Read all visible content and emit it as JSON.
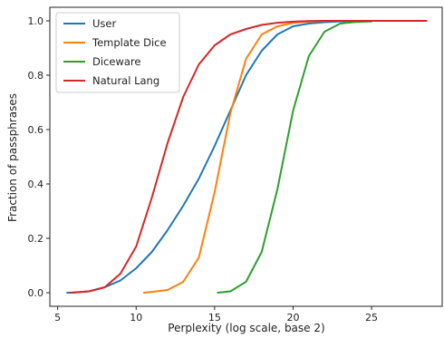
{
  "chart_data": {
    "type": "line",
    "title": "",
    "xlabel": "Perplexity (log scale, base 2)",
    "ylabel": "Fraction of passphrases",
    "xlim": [
      4.5,
      29.5
    ],
    "ylim": [
      -0.05,
      1.05
    ],
    "xticks": [
      5,
      10,
      15,
      20,
      25
    ],
    "yticks": [
      0.0,
      0.2,
      0.4,
      0.6,
      0.8,
      1.0
    ],
    "xtick_labels": [
      "5",
      "10",
      "15",
      "20",
      "25"
    ],
    "ytick_labels": [
      "0.0",
      "0.2",
      "0.4",
      "0.6",
      "0.8",
      "1.0"
    ],
    "grid": false,
    "legend_position": "top-left",
    "series": [
      {
        "name": "User",
        "color": "#1f77b4",
        "x": [
          5.6,
          6,
          7,
          8,
          9,
          10,
          11,
          12,
          13,
          14,
          15,
          16,
          17,
          18,
          19,
          20,
          21,
          22,
          23,
          24,
          25
        ],
        "y": [
          0.0,
          0.0,
          0.005,
          0.02,
          0.045,
          0.09,
          0.15,
          0.23,
          0.32,
          0.42,
          0.54,
          0.67,
          0.8,
          0.89,
          0.95,
          0.98,
          0.99,
          0.995,
          0.998,
          1.0,
          1.0
        ]
      },
      {
        "name": "Template Dice",
        "color": "#ff7f0e",
        "x": [
          10.5,
          11,
          12,
          13,
          14,
          15,
          16,
          17,
          18,
          19,
          20,
          21,
          22,
          23,
          24,
          25
        ],
        "y": [
          0.0,
          0.003,
          0.01,
          0.04,
          0.13,
          0.37,
          0.66,
          0.86,
          0.95,
          0.98,
          0.993,
          0.997,
          0.999,
          1.0,
          1.0,
          1.0
        ]
      },
      {
        "name": "Diceware",
        "color": "#2ca02c",
        "x": [
          15.2,
          16,
          17,
          18,
          19,
          20,
          21,
          22,
          23,
          24,
          25
        ],
        "y": [
          0.0,
          0.005,
          0.04,
          0.15,
          0.38,
          0.67,
          0.87,
          0.96,
          0.99,
          0.996,
          0.998
        ]
      },
      {
        "name": "Natural Lang",
        "color": "#d62728",
        "x": [
          5.8,
          7,
          8,
          9,
          10,
          11,
          12,
          13,
          14,
          15,
          16,
          17,
          18,
          19,
          20,
          21,
          22,
          24,
          26,
          28.5
        ],
        "y": [
          0.0,
          0.005,
          0.02,
          0.07,
          0.17,
          0.35,
          0.55,
          0.72,
          0.84,
          0.91,
          0.95,
          0.97,
          0.985,
          0.993,
          0.997,
          0.999,
          1.0,
          1.0,
          1.0,
          1.0
        ]
      }
    ]
  }
}
